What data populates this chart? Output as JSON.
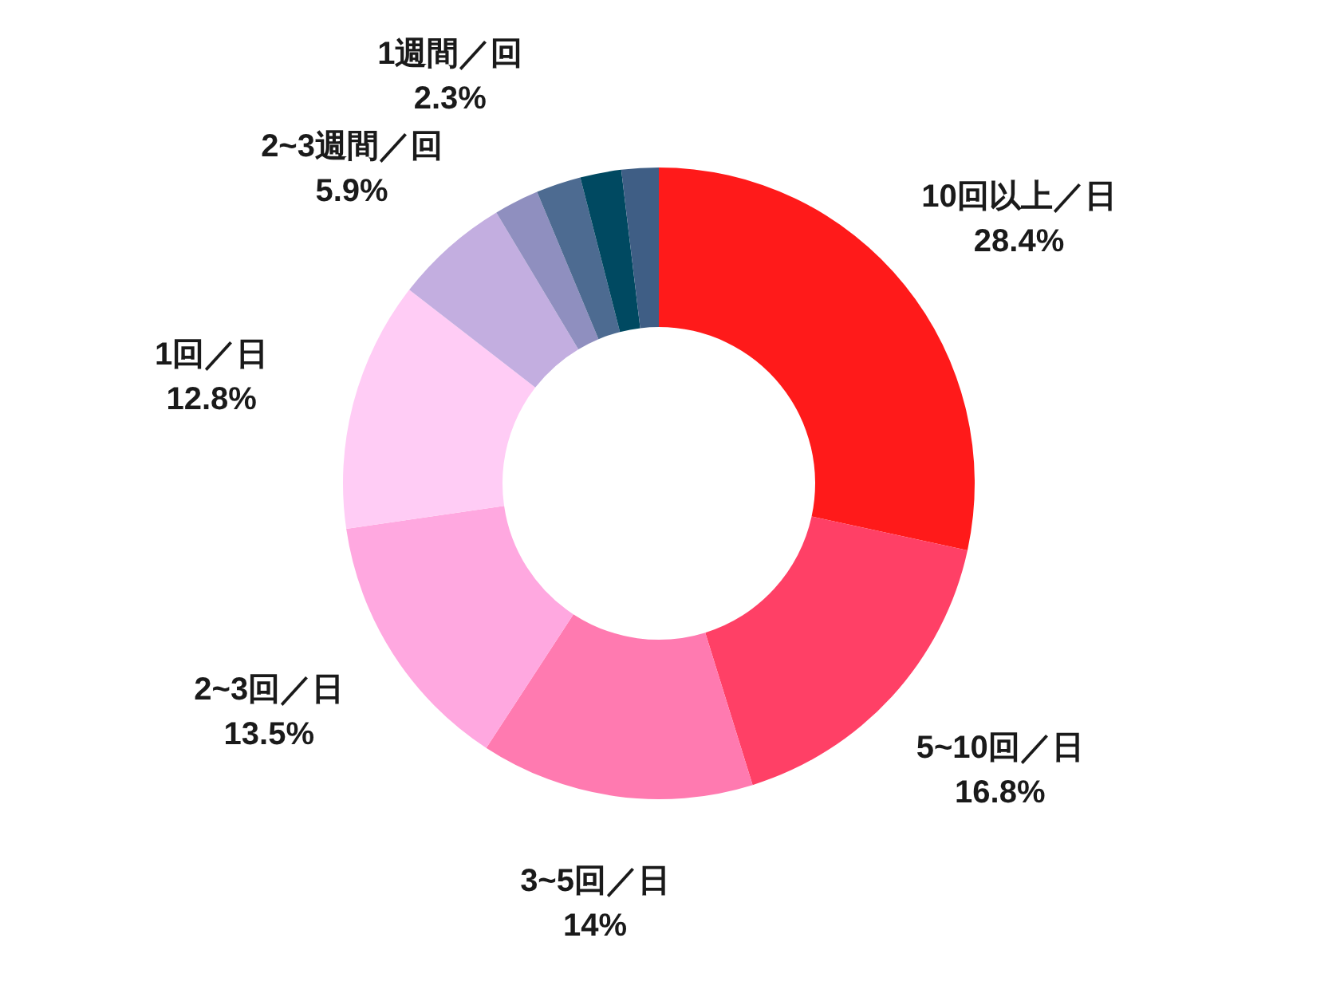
{
  "chart_data": {
    "type": "donut",
    "categories": [
      "10回以上／日",
      "5~10回／日",
      "3~5回／日",
      "2~3回／日",
      "1回／日",
      "2~3週間／回",
      "1週間／回",
      null,
      null,
      null
    ],
    "values": [
      28.4,
      16.8,
      14,
      13.5,
      12.8,
      5.9,
      2.3,
      2.3,
      2.1,
      1.9
    ],
    "value_labels": [
      "28.4%",
      "16.8%",
      "14%",
      "13.5%",
      "12.8%",
      "5.9%",
      "2.3%",
      null,
      null,
      null
    ],
    "colors": [
      "#ff1a1a",
      "#ff4066",
      "#ff7ab0",
      "#ffa8e0",
      "#ffccf5",
      "#c3aee0",
      "#8f8fbf",
      "#4d6b91",
      "#004961",
      "#3f5e85"
    ]
  }
}
